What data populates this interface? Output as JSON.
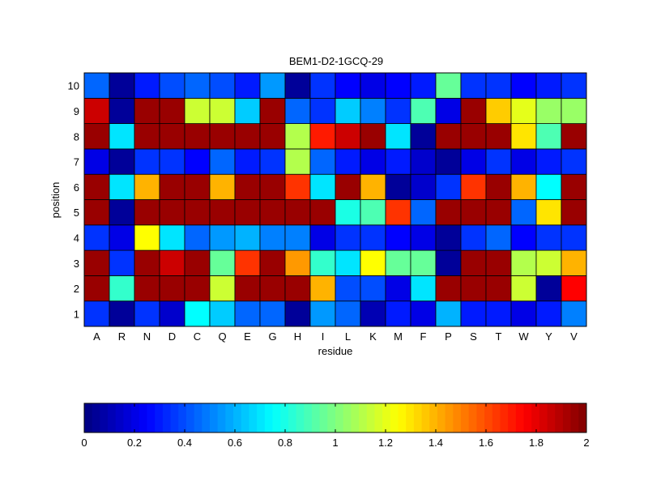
{
  "chart_data": {
    "type": "heatmap",
    "title": "BEM1-D2-1GCQ-29",
    "xlabel": "residue",
    "ylabel": "position",
    "x": [
      "A",
      "R",
      "N",
      "D",
      "C",
      "Q",
      "E",
      "G",
      "H",
      "I",
      "L",
      "K",
      "M",
      "F",
      "P",
      "S",
      "T",
      "W",
      "Y",
      "V"
    ],
    "y": [
      "1",
      "2",
      "3",
      "4",
      "5",
      "6",
      "7",
      "8",
      "9",
      "10"
    ],
    "values": [
      [
        0.35,
        0.05,
        0.35,
        0.15,
        0.75,
        0.65,
        0.45,
        0.45,
        0.05,
        0.55,
        0.45,
        0.1,
        0.3,
        0.2,
        0.6,
        0.3,
        0.3,
        0.2,
        0.3,
        0.5
      ],
      [
        1.95,
        0.85,
        1.95,
        1.95,
        1.95,
        1.15,
        1.95,
        1.95,
        1.95,
        1.4,
        0.4,
        0.4,
        0.2,
        0.7,
        1.95,
        1.95,
        1.95,
        1.15,
        0.05,
        1.75
      ],
      [
        1.95,
        0.35,
        1.95,
        1.85,
        1.95,
        0.95,
        1.65,
        1.95,
        1.45,
        0.85,
        0.7,
        1.25,
        0.95,
        0.95,
        0.05,
        1.95,
        1.95,
        1.1,
        1.15,
        1.4
      ],
      [
        0.35,
        0.2,
        1.25,
        0.7,
        0.45,
        0.55,
        0.6,
        0.5,
        0.5,
        0.2,
        0.35,
        0.35,
        0.25,
        0.2,
        0.05,
        0.35,
        0.45,
        0.25,
        0.35,
        0.35
      ],
      [
        1.95,
        0.05,
        1.95,
        1.95,
        1.95,
        1.95,
        1.95,
        1.95,
        1.95,
        1.95,
        0.8,
        0.9,
        1.65,
        0.45,
        1.95,
        1.95,
        1.95,
        0.45,
        1.3,
        1.95
      ],
      [
        1.95,
        0.7,
        1.4,
        1.95,
        1.95,
        1.4,
        1.95,
        1.95,
        1.65,
        0.7,
        1.95,
        1.4,
        0.05,
        0.15,
        0.35,
        1.65,
        1.95,
        1.4,
        0.75,
        1.95
      ],
      [
        0.2,
        0.05,
        0.35,
        0.35,
        0.25,
        0.45,
        0.3,
        0.35,
        1.1,
        0.45,
        0.3,
        0.2,
        0.3,
        0.15,
        0.05,
        0.2,
        0.35,
        0.2,
        0.3,
        0.35
      ],
      [
        1.95,
        0.7,
        1.95,
        1.95,
        1.95,
        1.95,
        1.95,
        1.95,
        1.1,
        1.7,
        1.85,
        1.95,
        0.7,
        0.05,
        1.95,
        1.95,
        1.95,
        1.3,
        0.9,
        1.95
      ],
      [
        1.85,
        0.05,
        1.95,
        1.95,
        1.15,
        1.15,
        0.65,
        1.95,
        0.45,
        0.35,
        0.65,
        0.5,
        0.35,
        0.9,
        0.2,
        1.95,
        1.35,
        1.2,
        1.05,
        1.05
      ],
      [
        0.45,
        0.05,
        0.3,
        0.4,
        0.45,
        0.4,
        0.3,
        0.55,
        0.05,
        0.35,
        0.25,
        0.2,
        0.25,
        0.3,
        0.95,
        0.35,
        0.35,
        0.25,
        0.3,
        0.35
      ]
    ],
    "zlim": [
      0,
      2
    ],
    "colorbar": {
      "ticks": [
        0,
        0.2,
        0.4,
        0.6,
        0.8,
        1,
        1.2,
        1.4,
        1.6,
        1.8,
        2
      ],
      "tick_labels": [
        "0",
        "0.2",
        "0.4",
        "0.6",
        "0.8",
        "1",
        "1.2",
        "1.4",
        "1.6",
        "1.8",
        "2"
      ],
      "orientation": "horizontal",
      "placement": "bottom"
    },
    "colormap": "jet",
    "grid": false
  }
}
